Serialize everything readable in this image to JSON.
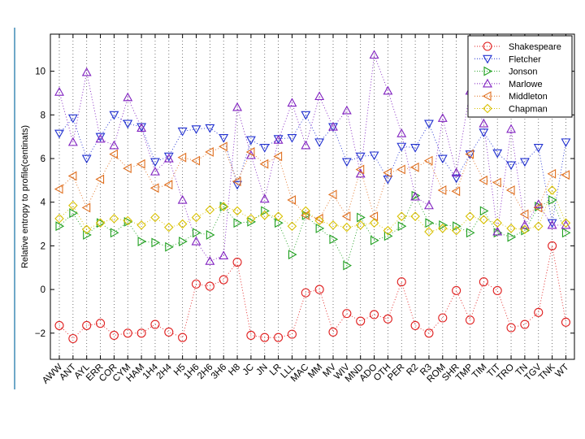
{
  "chart_data": {
    "type": "scatter",
    "ylabel": "Relative entropy to profile(centinats)",
    "ylim": [
      -3.2,
      11.7
    ],
    "yticks": [
      -2,
      0,
      2,
      4,
      6,
      8,
      10
    ],
    "ytick_labels": [
      "−2",
      "0",
      "2",
      "4",
      "6",
      "8",
      "10"
    ],
    "grid": "vertical dotted",
    "legend_position": "top-right",
    "categories": [
      "AWW",
      "ANT",
      "AYL",
      "ERR",
      "COR",
      "CYM",
      "HAM",
      "1H4",
      "2H4",
      "H5",
      "1H6",
      "2H6",
      "3H6",
      "H8",
      "JC",
      "JN",
      "LR",
      "LLL",
      "MAC",
      "MM",
      "MV",
      "WIV",
      "MND",
      "ADO",
      "OTH",
      "PER",
      "R2",
      "R3",
      "ROM",
      "SHR",
      "TMP",
      "TIM",
      "TIT",
      "TRO",
      "TN",
      "TGV",
      "TNK",
      "WT"
    ],
    "series": [
      {
        "name": "Shakespeare",
        "color": "#e02020",
        "marker": "circle",
        "values": [
          -1.65,
          -2.25,
          -1.65,
          -1.55,
          -2.1,
          -2.0,
          -2.0,
          -1.6,
          -1.95,
          -2.2,
          0.25,
          0.15,
          0.45,
          1.25,
          -2.1,
          -2.2,
          -2.2,
          -2.05,
          -0.15,
          0.0,
          -1.95,
          -1.1,
          -1.45,
          -1.15,
          -1.35,
          0.35,
          -1.65,
          -2.0,
          -1.3,
          -0.05,
          -1.4,
          0.35,
          -0.05,
          -1.75,
          -1.6,
          -1.05,
          2.0,
          -1.5
        ]
      },
      {
        "name": "Fletcher",
        "color": "#2030d0",
        "marker": "triangle-down",
        "values": [
          7.15,
          7.85,
          6.0,
          7.0,
          8.0,
          7.6,
          7.45,
          5.85,
          6.1,
          7.25,
          7.35,
          7.4,
          6.95,
          4.8,
          6.85,
          6.5,
          6.9,
          6.95,
          8.0,
          6.75,
          7.45,
          5.85,
          6.1,
          6.15,
          5.05,
          6.55,
          6.5,
          7.6,
          6.0,
          5.1,
          6.2,
          7.2,
          6.25,
          5.7,
          5.85,
          6.5,
          3.05,
          6.75
        ]
      },
      {
        "name": "Jonson",
        "color": "#20a020",
        "marker": "triangle-right",
        "values": [
          2.9,
          3.5,
          2.5,
          3.05,
          2.6,
          3.1,
          2.2,
          2.15,
          1.95,
          2.2,
          2.6,
          2.5,
          3.8,
          3.05,
          3.1,
          3.6,
          3.05,
          1.6,
          3.4,
          2.8,
          2.3,
          1.1,
          3.3,
          2.25,
          2.45,
          2.9,
          4.3,
          3.05,
          2.95,
          2.9,
          2.6,
          3.6,
          2.6,
          2.4,
          2.7,
          3.8,
          4.1,
          2.6
        ]
      },
      {
        "name": "Marlowe",
        "color": "#8020c0",
        "marker": "triangle-up",
        "values": [
          9.05,
          6.75,
          9.95,
          6.9,
          6.6,
          8.8,
          7.4,
          5.4,
          6.0,
          4.1,
          2.2,
          1.3,
          1.55,
          8.35,
          6.15,
          4.15,
          6.85,
          8.55,
          6.6,
          8.85,
          7.45,
          8.2,
          5.3,
          10.75,
          9.1,
          7.15,
          4.25,
          3.85,
          7.85,
          5.35,
          9.1,
          7.6,
          2.65,
          7.35,
          2.95,
          3.9,
          2.95,
          2.95
        ]
      },
      {
        "name": "Middleton",
        "color": "#e07020",
        "marker": "triangle-left",
        "values": [
          4.6,
          5.2,
          3.75,
          5.05,
          6.2,
          5.55,
          5.75,
          4.65,
          4.8,
          6.05,
          5.9,
          6.3,
          6.55,
          4.95,
          6.3,
          5.75,
          6.1,
          4.1,
          3.4,
          3.25,
          4.35,
          3.35,
          5.5,
          3.35,
          5.35,
          5.5,
          5.6,
          5.9,
          4.55,
          4.5,
          6.2,
          5.0,
          4.9,
          4.55,
          3.45,
          3.75,
          5.3,
          5.25
        ]
      },
      {
        "name": "Chapman",
        "color": "#d8c000",
        "marker": "diamond",
        "values": [
          3.25,
          3.85,
          2.75,
          3.05,
          3.25,
          3.15,
          2.95,
          3.3,
          2.85,
          3.0,
          3.3,
          3.65,
          3.8,
          3.6,
          3.25,
          3.4,
          3.35,
          2.9,
          3.6,
          3.15,
          2.95,
          2.85,
          2.95,
          3.05,
          2.7,
          3.35,
          3.35,
          2.65,
          2.8,
          2.7,
          3.35,
          3.2,
          3.05,
          2.8,
          2.75,
          2.9,
          4.55,
          3.05
        ]
      }
    ]
  }
}
